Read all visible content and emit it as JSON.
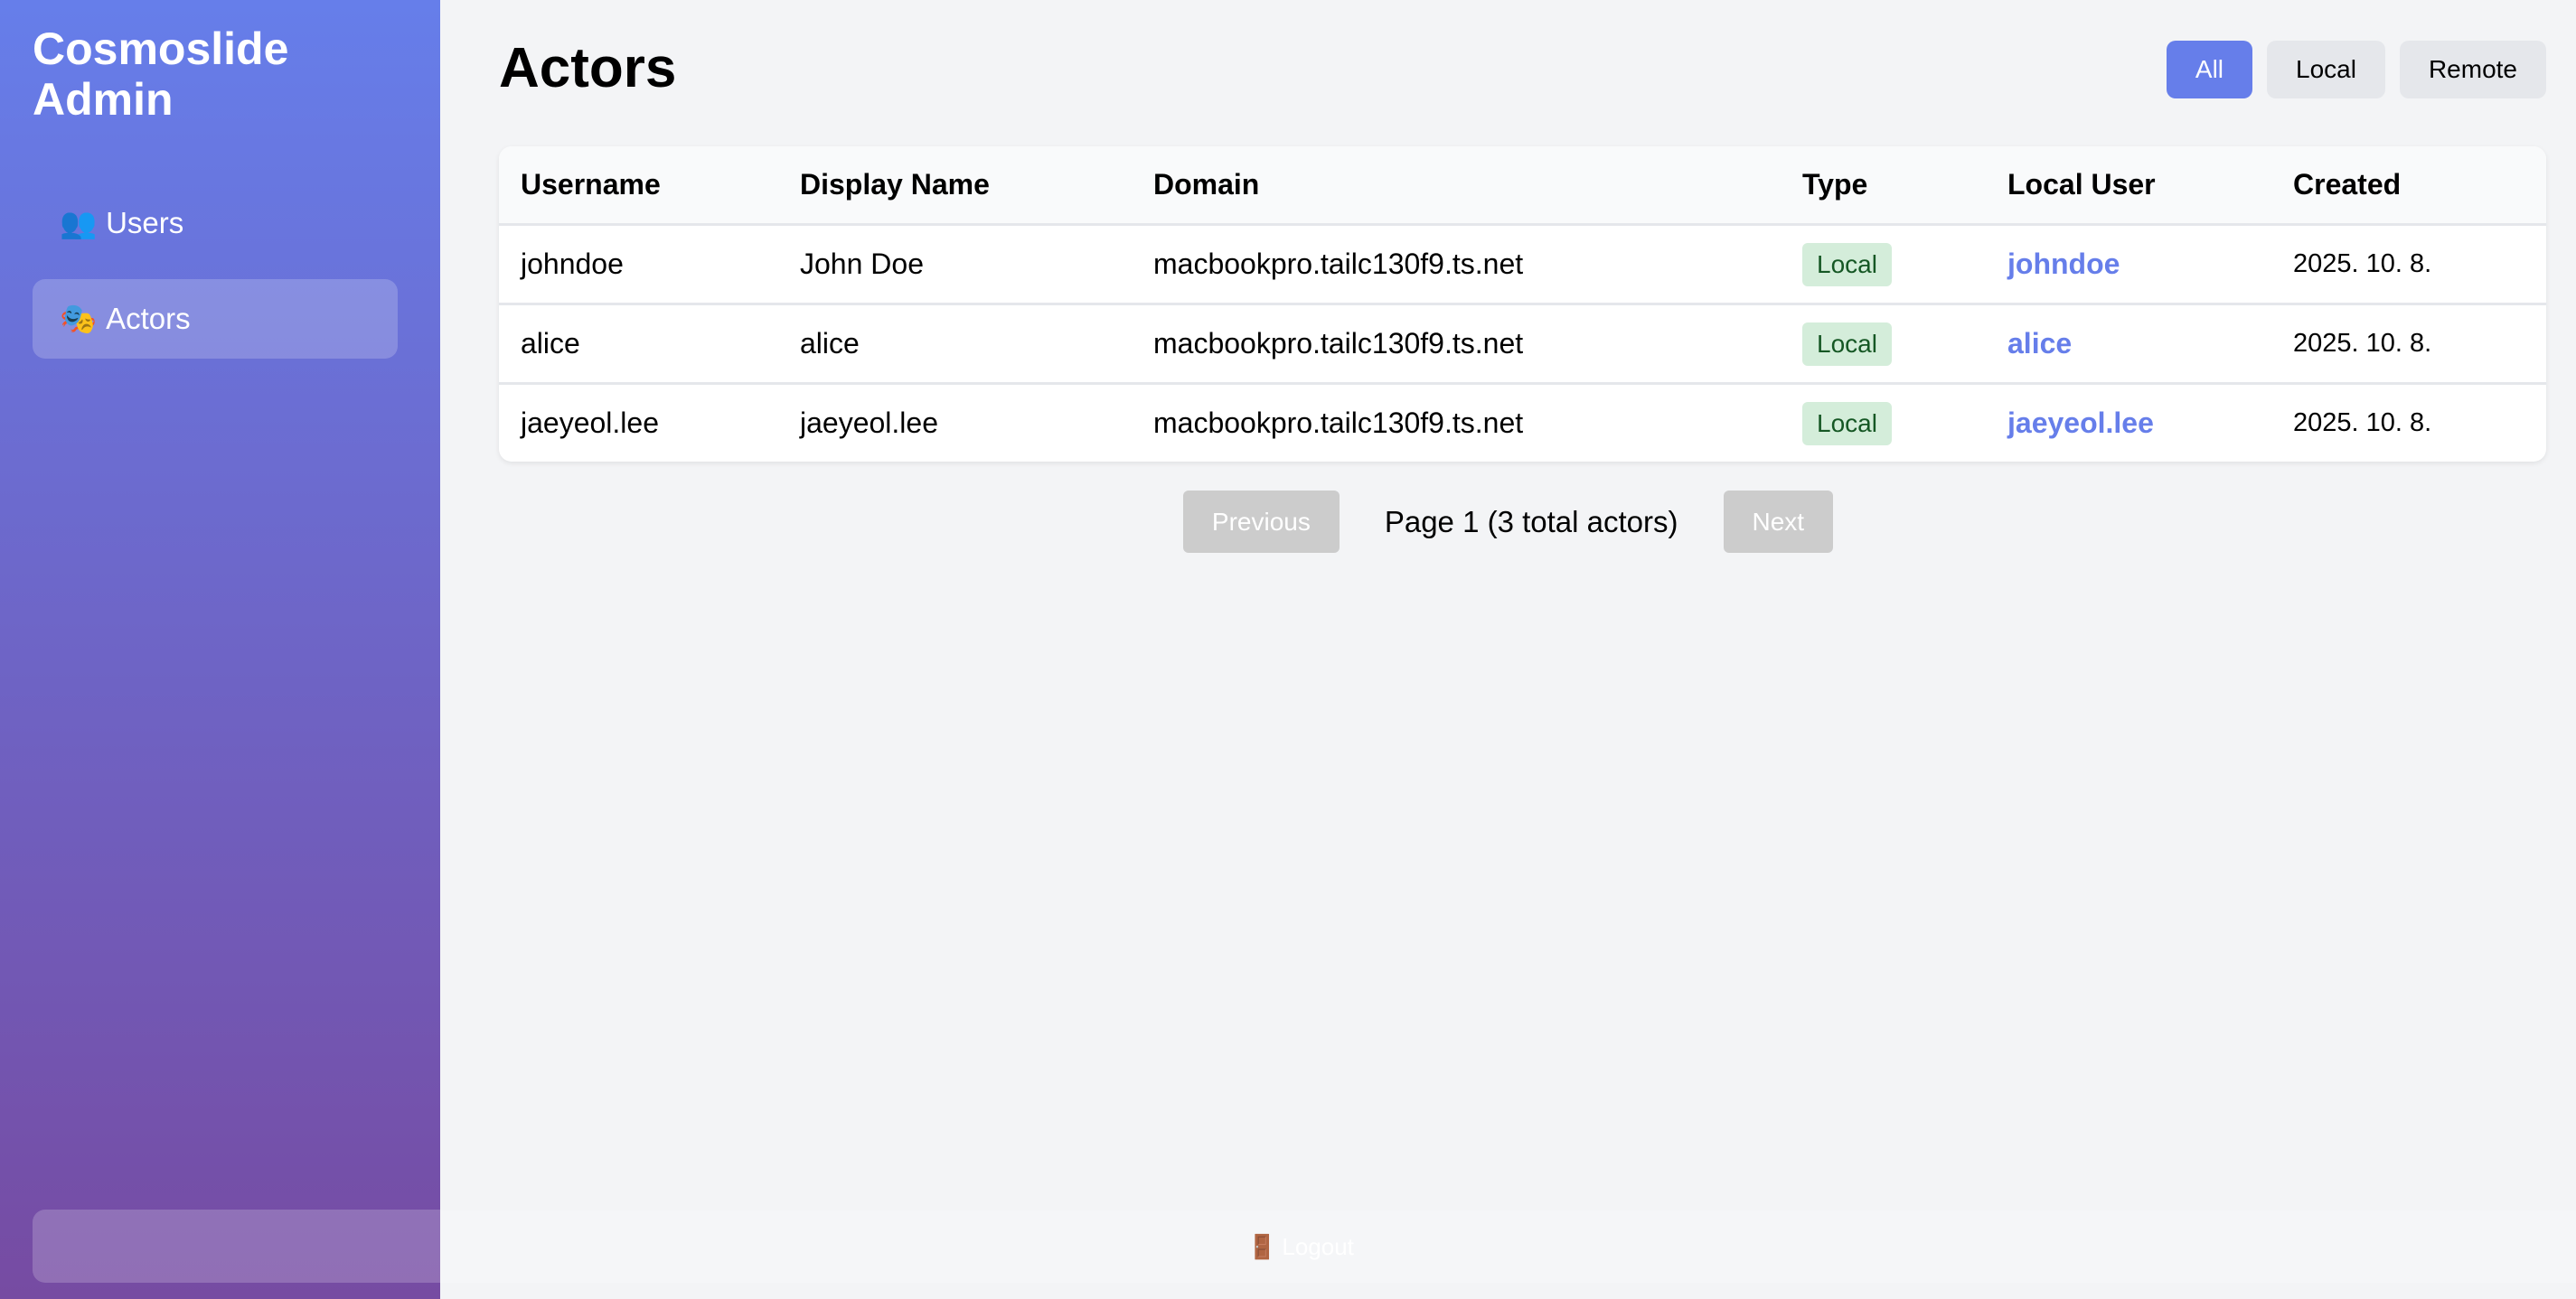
{
  "sidebar": {
    "brand": "Cosmoslide Admin",
    "items": [
      {
        "icon": "👥",
        "label": "Users"
      },
      {
        "icon": "🎭",
        "label": "Actors"
      }
    ],
    "logout": {
      "icon": "🚪",
      "label": "Logout"
    }
  },
  "main": {
    "title": "Actors",
    "filters": [
      "All",
      "Local",
      "Remote"
    ],
    "active_filter": "All"
  },
  "table": {
    "headers": [
      "Username",
      "Display Name",
      "Domain",
      "Type",
      "Local User",
      "Created"
    ],
    "rows": [
      [
        "johndoe",
        "John Doe",
        "macbookpro.tailc130f9.ts.net",
        "Local",
        "johndoe",
        "2025. 10. 8."
      ],
      [
        "alice",
        "alice",
        "macbookpro.tailc130f9.ts.net",
        "Local",
        "alice",
        "2025. 10. 8."
      ],
      [
        "jaeyeol.lee",
        "jaeyeol.lee",
        "macbookpro.tailc130f9.ts.net",
        "Local",
        "jaeyeol.lee",
        "2025. 10. 8."
      ]
    ]
  },
  "pagination": {
    "previous": "Previous",
    "status": "Page 1 (3 total actors)",
    "next": "Next"
  },
  "colors": {
    "accent": "#667eea",
    "gradient_end": "#764ba2",
    "badge_bg": "#d4edda",
    "badge_text": "#155724"
  }
}
